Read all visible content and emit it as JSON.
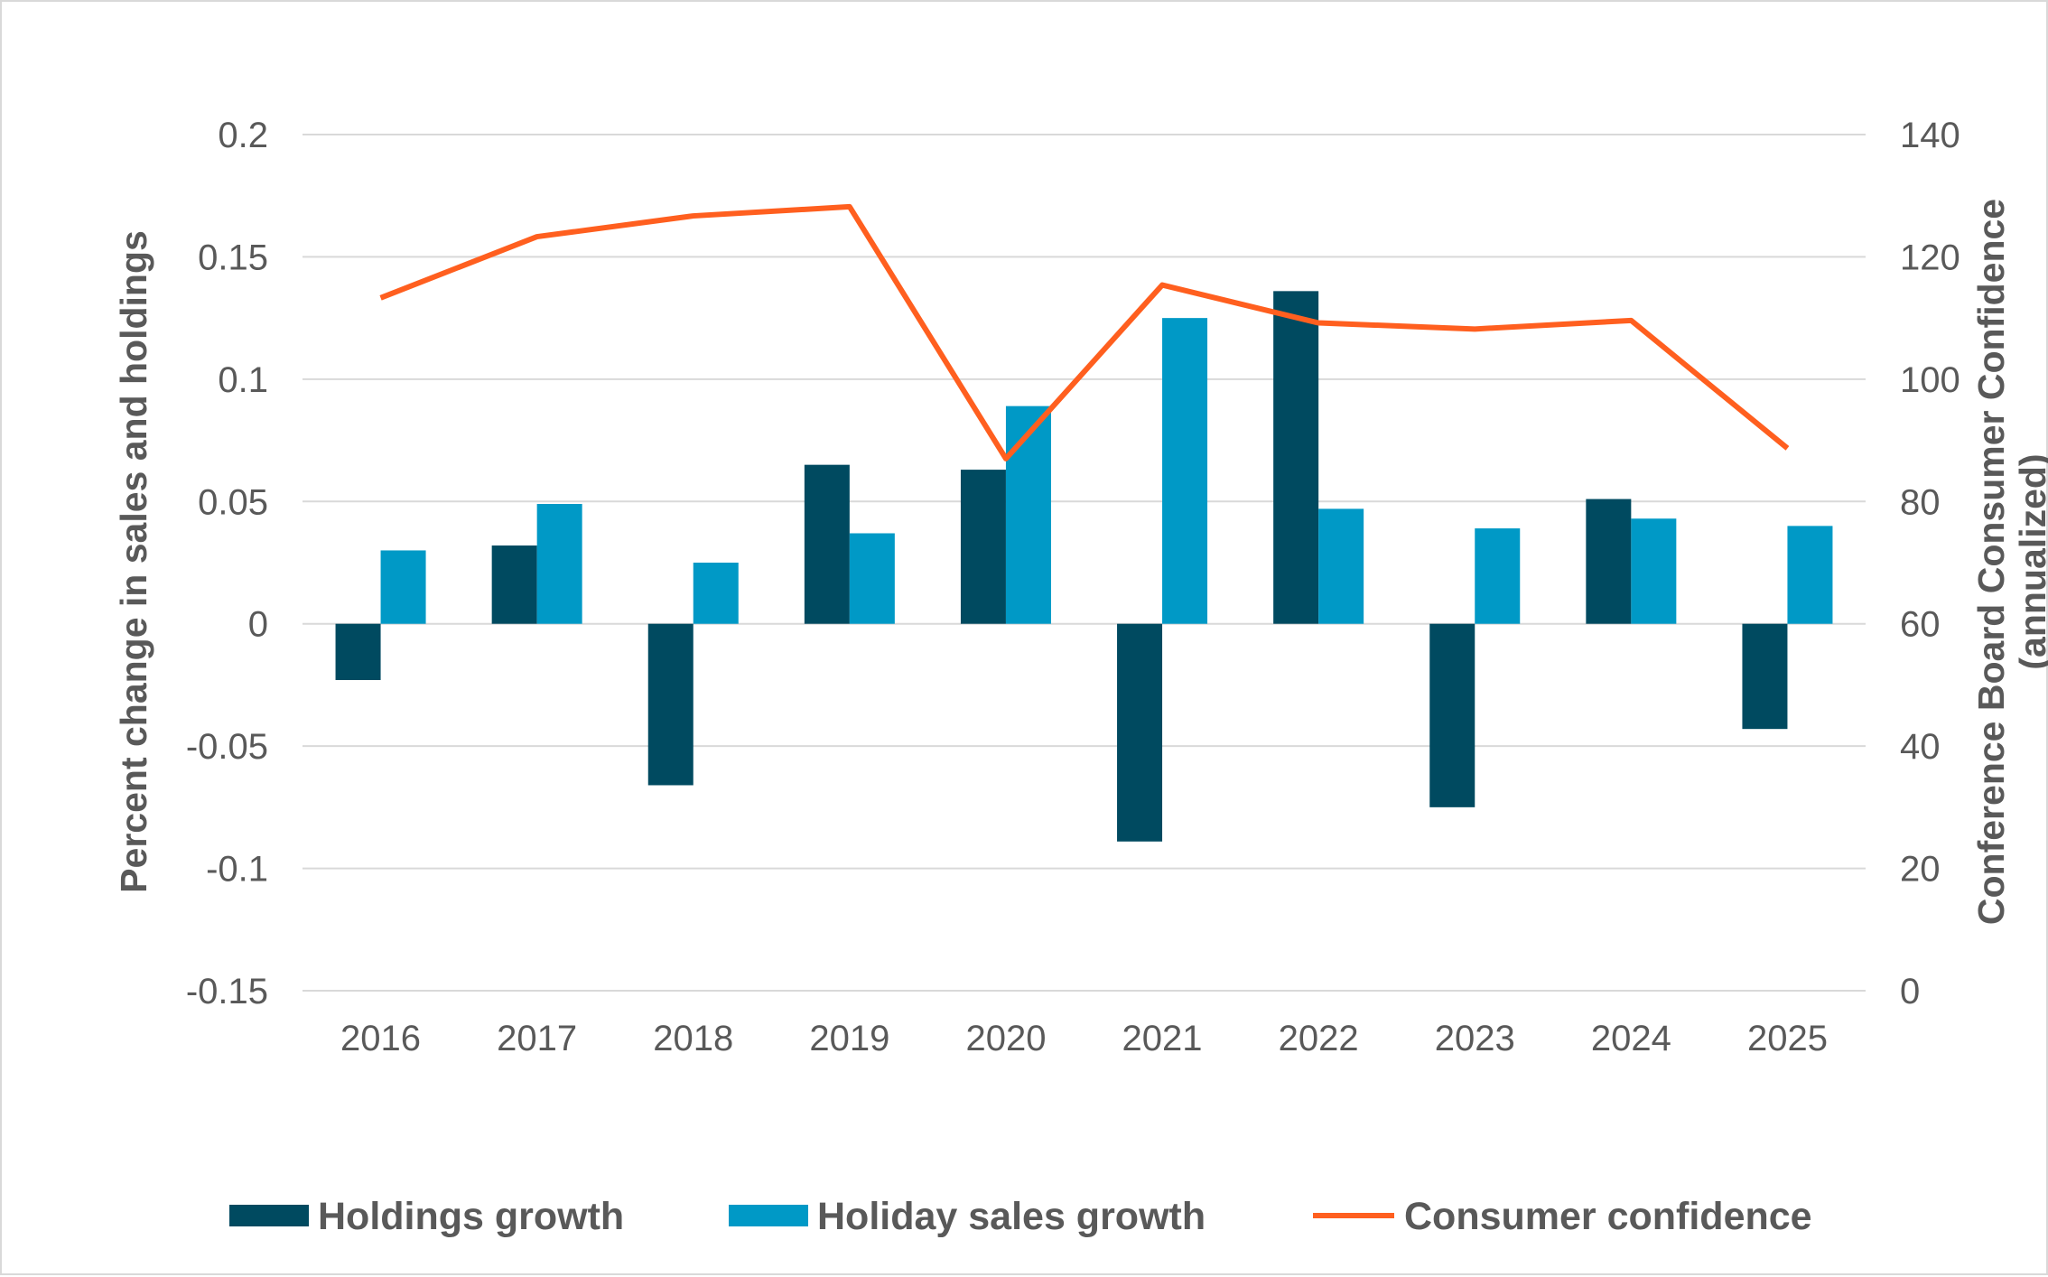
{
  "chart_data": {
    "type": "bar+line",
    "categories": [
      "2016",
      "2017",
      "2018",
      "2019",
      "2020",
      "2021",
      "2022",
      "2023",
      "2024",
      "2025"
    ],
    "series": [
      {
        "name": "Holdings growth",
        "type": "bar",
        "axis": "left",
        "color": "#004a60",
        "values": [
          -0.023,
          0.032,
          -0.066,
          0.065,
          0.063,
          -0.089,
          0.136,
          -0.075,
          0.051,
          -0.043
        ]
      },
      {
        "name": "Holiday sales growth",
        "type": "bar",
        "axis": "left",
        "color": "#0099c6",
        "values": [
          0.03,
          0.049,
          0.025,
          0.037,
          0.089,
          0.125,
          0.047,
          0.039,
          0.043,
          0.04
        ]
      },
      {
        "name": "Consumer confidence",
        "type": "line",
        "axis": "right",
        "color": "#ff5f1f",
        "values": [
          113.3,
          123.3,
          126.7,
          128.2,
          87.0,
          115.4,
          109.2,
          108.2,
          109.6,
          88.7
        ]
      }
    ],
    "ylabel": "Percent change in sales and holdings",
    "y2label_line1": "Conference Board Consumer Confidence",
    "y2label_line2": "(annualized)",
    "ylim": [
      -0.15,
      0.2
    ],
    "y2lim": [
      0,
      140
    ],
    "yticks": [
      "-0.15",
      "-0.1",
      "-0.05",
      "0",
      "0.05",
      "0.1",
      "0.15",
      "0.2"
    ],
    "y2ticks": [
      "0",
      "20",
      "40",
      "60",
      "80",
      "100",
      "120",
      "140"
    ],
    "grid": true,
    "legend_position": "bottom"
  }
}
